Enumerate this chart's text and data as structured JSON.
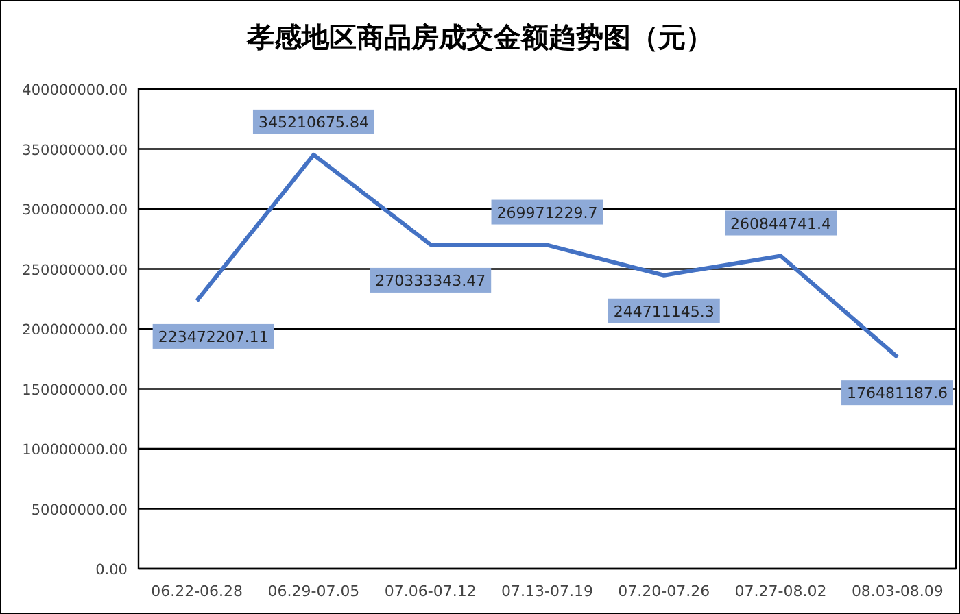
{
  "chart_data": {
    "type": "line",
    "title": "孝感地区商品房成交金额趋势图（元）",
    "categories": [
      "06.22-06.28",
      "06.29-07.05",
      "07.06-07.12",
      "07.13-07.19",
      "07.20-07.26",
      "07.27-08.02",
      "08.03-08.09"
    ],
    "series": [
      {
        "color": "#4472c4",
        "values": [
          223472207.11,
          345210675.84,
          270333343.47,
          269971229.7,
          244711145.3,
          260844741.4,
          176481187.6
        ]
      }
    ],
    "ylim": [
      0,
      400000000
    ],
    "yticks": [
      {
        "value": 0,
        "label": "0.00"
      },
      {
        "value": 50000000,
        "label": "50000000.00"
      },
      {
        "value": 100000000,
        "label": "100000000.00"
      },
      {
        "value": 150000000,
        "label": "150000000.00"
      },
      {
        "value": 200000000,
        "label": "200000000.00"
      },
      {
        "value": 250000000,
        "label": "250000000.00"
      },
      {
        "value": 300000000,
        "label": "300000000.00"
      },
      {
        "value": 350000000,
        "label": "350000000.00"
      },
      {
        "value": 400000000,
        "label": "400000000.00"
      }
    ],
    "grid": "y",
    "data_labels": true,
    "marker": "none"
  }
}
